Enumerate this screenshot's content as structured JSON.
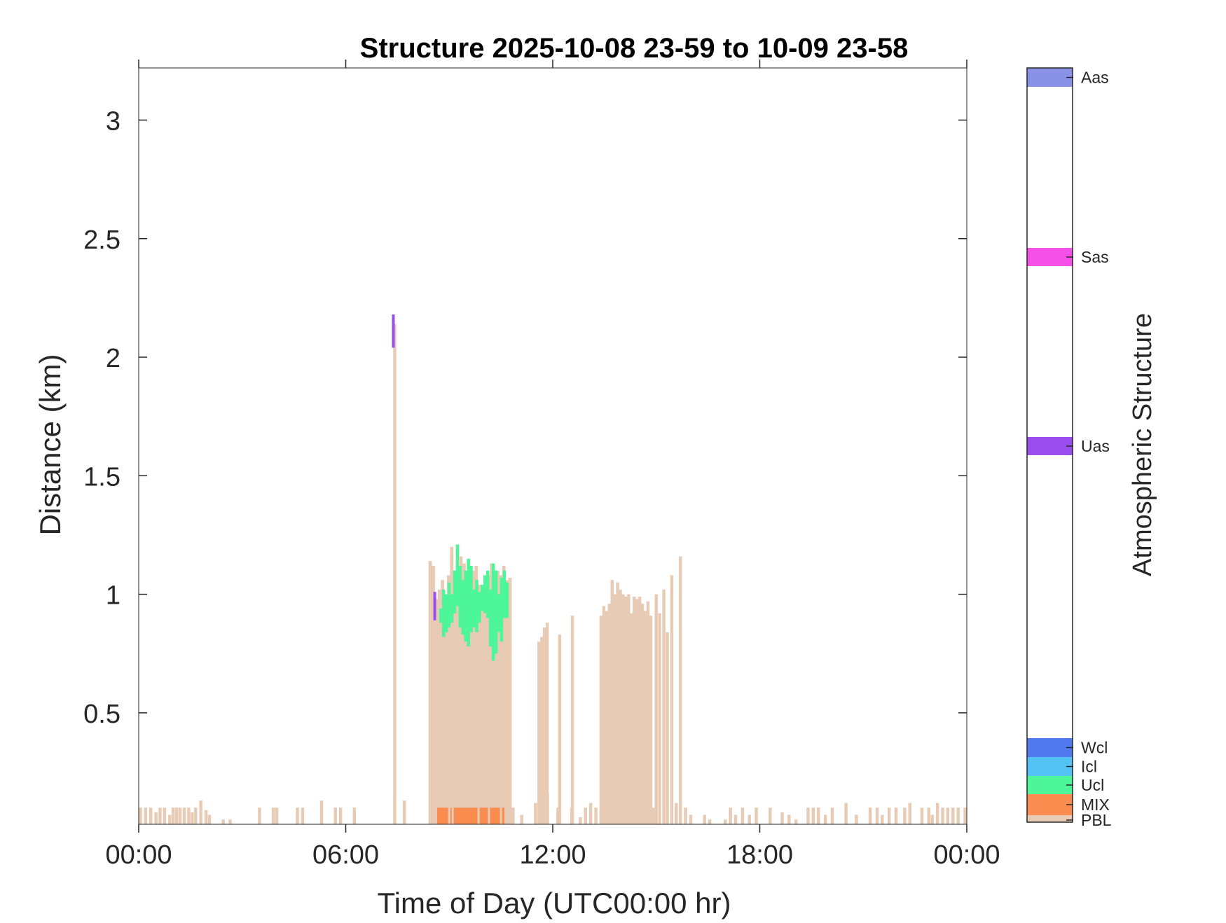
{
  "chart_data": {
    "type": "heatmap",
    "title": "Structure 2025-10-08 23-59 to 10-09 23-58",
    "xlabel": "Time of Day (UTC00:00 hr)",
    "ylabel": "Distance (km)",
    "xlim": [
      0,
      24
    ],
    "ylim": [
      0.03,
      3.22
    ],
    "xticks": [
      0,
      6,
      12,
      18,
      24
    ],
    "xtick_labels": [
      "00:00",
      "06:00",
      "12:00",
      "18:00",
      "00:00"
    ],
    "yticks": [
      0.5,
      1,
      1.5,
      2,
      2.5,
      3
    ],
    "ytick_labels": [
      "0.5",
      "1",
      "1.5",
      "2",
      "2.5",
      "3"
    ],
    "grid": false,
    "colorbar": {
      "label": "Atmospheric Structure",
      "categories": [
        {
          "name": "PBL",
          "color": "#E8CBB4"
        },
        {
          "name": "MIX",
          "color": "#FA8C50"
        },
        {
          "name": "Ucl",
          "color": "#4EF69A"
        },
        {
          "name": "Icl",
          "color": "#55C2F6"
        },
        {
          "name": "Wcl",
          "color": "#507AEE"
        },
        {
          "name": "Uas",
          "color": "#9B4EEE"
        },
        {
          "name": "Sas",
          "color": "#F550E8"
        },
        {
          "name": "Aas",
          "color": "#8A92E8"
        }
      ]
    },
    "pbl_columns": [
      {
        "t": 0.05,
        "top": 0.1
      },
      {
        "t": 0.2,
        "top": 0.1
      },
      {
        "t": 0.35,
        "top": 0.1
      },
      {
        "t": 0.5,
        "top": 0.08
      },
      {
        "t": 0.62,
        "top": 0.1
      },
      {
        "t": 0.75,
        "top": 0.1
      },
      {
        "t": 0.9,
        "top": 0.07
      },
      {
        "t": 1.0,
        "top": 0.1
      },
      {
        "t": 1.1,
        "top": 0.1
      },
      {
        "t": 1.2,
        "top": 0.1
      },
      {
        "t": 1.32,
        "top": 0.1
      },
      {
        "t": 1.45,
        "top": 0.1
      },
      {
        "t": 1.55,
        "top": 0.08
      },
      {
        "t": 1.65,
        "top": 0.1
      },
      {
        "t": 1.8,
        "top": 0.13
      },
      {
        "t": 1.95,
        "top": 0.09
      },
      {
        "t": 2.05,
        "top": 0.07
      },
      {
        "t": 2.45,
        "top": 0.05
      },
      {
        "t": 2.65,
        "top": 0.05
      },
      {
        "t": 3.5,
        "top": 0.1
      },
      {
        "t": 3.9,
        "top": 0.1
      },
      {
        "t": 4.0,
        "top": 0.1
      },
      {
        "t": 4.6,
        "top": 0.1
      },
      {
        "t": 4.75,
        "top": 0.1
      },
      {
        "t": 5.3,
        "top": 0.13
      },
      {
        "t": 5.7,
        "top": 0.1
      },
      {
        "t": 5.85,
        "top": 0.1
      },
      {
        "t": 6.25,
        "top": 0.1
      },
      {
        "t": 7.7,
        "top": 0.13
      },
      {
        "t": 10.85,
        "top": 0.1
      },
      {
        "t": 11.1,
        "top": 0.07
      },
      {
        "t": 11.75,
        "top": 0.1
      },
      {
        "t": 11.85,
        "top": 0.16
      },
      {
        "t": 12.15,
        "top": 0.1
      },
      {
        "t": 12.55,
        "top": 0.1
      },
      {
        "t": 12.8,
        "top": 0.06
      },
      {
        "t": 12.95,
        "top": 0.1
      },
      {
        "t": 13.1,
        "top": 0.12
      },
      {
        "t": 13.25,
        "top": 0.1
      },
      {
        "t": 13.4,
        "top": 0.1
      },
      {
        "t": 15.7,
        "top": 0.1
      },
      {
        "t": 15.85,
        "top": 0.1
      },
      {
        "t": 16.0,
        "top": 0.07
      },
      {
        "t": 16.4,
        "top": 0.07
      },
      {
        "t": 16.55,
        "top": 0.05
      },
      {
        "t": 17.0,
        "top": 0.05
      },
      {
        "t": 17.15,
        "top": 0.1
      },
      {
        "t": 17.3,
        "top": 0.07
      },
      {
        "t": 17.5,
        "top": 0.1
      },
      {
        "t": 17.7,
        "top": 0.07
      },
      {
        "t": 17.9,
        "top": 0.1
      },
      {
        "t": 18.3,
        "top": 0.1
      },
      {
        "t": 18.65,
        "top": 0.08
      },
      {
        "t": 18.85,
        "top": 0.07
      },
      {
        "t": 19.05,
        "top": 0.05
      },
      {
        "t": 19.4,
        "top": 0.1
      },
      {
        "t": 19.55,
        "top": 0.1
      },
      {
        "t": 19.7,
        "top": 0.1
      },
      {
        "t": 19.9,
        "top": 0.07
      },
      {
        "t": 20.1,
        "top": 0.1
      },
      {
        "t": 20.5,
        "top": 0.12
      },
      {
        "t": 20.8,
        "top": 0.07
      },
      {
        "t": 21.2,
        "top": 0.1
      },
      {
        "t": 21.4,
        "top": 0.1
      },
      {
        "t": 21.55,
        "top": 0.07
      },
      {
        "t": 21.75,
        "top": 0.1
      },
      {
        "t": 21.95,
        "top": 0.1
      },
      {
        "t": 22.2,
        "top": 0.1
      },
      {
        "t": 22.35,
        "top": 0.12
      },
      {
        "t": 22.7,
        "top": 0.1
      },
      {
        "t": 22.9,
        "top": 0.1
      },
      {
        "t": 23.0,
        "top": 0.07
      },
      {
        "t": 23.15,
        "top": 0.12
      },
      {
        "t": 23.3,
        "top": 0.1
      },
      {
        "t": 23.45,
        "top": 0.1
      },
      {
        "t": 23.6,
        "top": 0.1
      },
      {
        "t": 23.75,
        "top": 0.1
      },
      {
        "t": 23.95,
        "top": 0.1
      },
      {
        "t": 7.42,
        "top": 2.14
      },
      {
        "t": 11.5,
        "top": 0.12
      },
      {
        "t": 11.6,
        "top": 0.8
      },
      {
        "t": 11.68,
        "top": 0.82
      },
      {
        "t": 11.76,
        "top": 0.86
      },
      {
        "t": 11.84,
        "top": 0.88
      },
      {
        "t": 12.2,
        "top": 0.83
      },
      {
        "t": 12.57,
        "top": 0.91
      },
      {
        "t": 13.4,
        "top": 0.91
      },
      {
        "t": 13.48,
        "top": 0.95
      },
      {
        "t": 13.56,
        "top": 0.93
      },
      {
        "t": 13.64,
        "top": 0.96
      },
      {
        "t": 13.72,
        "top": 1.06
      },
      {
        "t": 13.8,
        "top": 1.0
      },
      {
        "t": 13.88,
        "top": 1.05
      },
      {
        "t": 13.96,
        "top": 1.02
      },
      {
        "t": 14.04,
        "top": 1.0
      },
      {
        "t": 14.12,
        "top": 0.99
      },
      {
        "t": 14.2,
        "top": 1.0
      },
      {
        "t": 14.28,
        "top": 0.92
      },
      {
        "t": 14.36,
        "top": 0.99
      },
      {
        "t": 14.44,
        "top": 0.98
      },
      {
        "t": 14.52,
        "top": 0.99
      },
      {
        "t": 14.6,
        "top": 0.96
      },
      {
        "t": 14.68,
        "top": 0.93
      },
      {
        "t": 14.76,
        "top": 0.97
      },
      {
        "t": 14.84,
        "top": 0.91
      },
      {
        "t": 14.92,
        "top": 0.1
      },
      {
        "t": 15.0,
        "top": 1.0
      },
      {
        "t": 15.1,
        "top": 0.92
      },
      {
        "t": 15.22,
        "top": 1.02
      },
      {
        "t": 15.32,
        "top": 0.84
      },
      {
        "t": 15.45,
        "top": 1.08
      },
      {
        "t": 15.58,
        "top": 0.12
      },
      {
        "t": 15.7,
        "top": 1.16
      }
    ],
    "main_block": {
      "t_start": 8.4,
      "t_end": 10.8,
      "pbl_top": [
        1.14,
        1.12,
        0.98,
        1.02,
        1.06,
        1.0,
        1.08,
        1.2,
        1.1,
        1.12,
        1.16,
        1.13,
        1.06,
        1.08,
        1.1,
        1.12,
        1.04,
        1.02,
        1.06,
        1.08,
        1.13,
        1.08,
        1.1,
        1.08,
        1.12,
        1.06,
        1.07
      ],
      "mix_start": 8.65,
      "mix_end": 10.6,
      "mix_top": 0.1,
      "ucl": [
        {
          "t": 8.75,
          "bottom": 0.88,
          "top": 0.94
        },
        {
          "t": 8.83,
          "bottom": 0.82,
          "top": 1.02
        },
        {
          "t": 8.91,
          "bottom": 0.84,
          "top": 1.0
        },
        {
          "t": 8.99,
          "bottom": 0.86,
          "top": 1.05
        },
        {
          "t": 9.07,
          "bottom": 0.88,
          "top": 1.0
        },
        {
          "t": 9.15,
          "bottom": 0.92,
          "top": 1.1
        },
        {
          "t": 9.23,
          "bottom": 0.95,
          "top": 1.21
        },
        {
          "t": 9.31,
          "bottom": 0.86,
          "top": 1.12
        },
        {
          "t": 9.39,
          "bottom": 0.83,
          "top": 1.06
        },
        {
          "t": 9.47,
          "bottom": 0.8,
          "top": 1.1
        },
        {
          "t": 9.55,
          "bottom": 0.78,
          "top": 1.15
        },
        {
          "t": 9.63,
          "bottom": 0.84,
          "top": 1.12
        },
        {
          "t": 9.71,
          "bottom": 0.86,
          "top": 1.02
        },
        {
          "t": 9.79,
          "bottom": 0.84,
          "top": 1.06
        },
        {
          "t": 9.87,
          "bottom": 0.88,
          "top": 1.01
        },
        {
          "t": 9.95,
          "bottom": 0.93,
          "top": 1.04
        },
        {
          "t": 10.03,
          "bottom": 0.92,
          "top": 1.08
        },
        {
          "t": 10.11,
          "bottom": 0.9,
          "top": 1.1
        },
        {
          "t": 10.19,
          "bottom": 0.78,
          "top": 1.02
        },
        {
          "t": 10.27,
          "bottom": 0.72,
          "top": 1.13
        },
        {
          "t": 10.35,
          "bottom": 0.75,
          "top": 1.1
        },
        {
          "t": 10.43,
          "bottom": 0.84,
          "top": 1.0
        },
        {
          "t": 10.51,
          "bottom": 0.8,
          "top": 1.07
        },
        {
          "t": 10.59,
          "bottom": 0.9,
          "top": 1.1
        },
        {
          "t": 10.67,
          "bottom": 0.9,
          "top": 1.05
        }
      ]
    },
    "uas_marks": [
      {
        "t": 7.38,
        "bottom": 2.04,
        "top": 2.18
      },
      {
        "t": 8.58,
        "bottom": 0.89,
        "top": 1.01
      }
    ]
  }
}
